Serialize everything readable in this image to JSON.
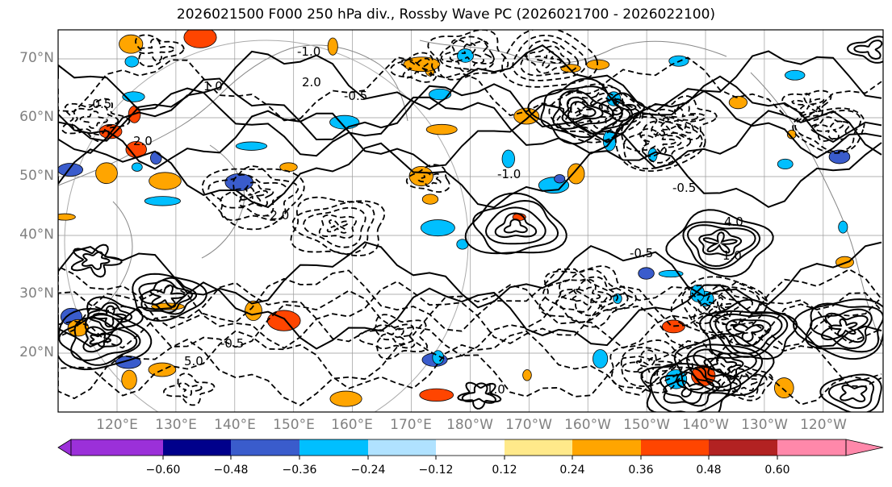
{
  "title": "2026021500 F000 250 hPa div., Rossby Wave PC (2026021700 - 2026022100)",
  "lat_labels": [
    "70°N",
    "60°N",
    "50°N",
    "40°N",
    "30°N",
    "20°N"
  ],
  "lon_labels": [
    "120°E",
    "130°E",
    "140°E",
    "150°E",
    "160°E",
    "170°E",
    "180°W",
    "170°W",
    "160°W",
    "150°W",
    "140°W",
    "130°W",
    "120°W"
  ],
  "colorbar": {
    "ticks": [
      "−0.60",
      "−0.48",
      "−0.36",
      "−0.24",
      "−0.12",
      "0.12",
      "0.24",
      "0.36",
      "0.48",
      "0.60"
    ],
    "colors": [
      "#9b30d9",
      "#00008b",
      "#3a5ccc",
      "#00bfff",
      "#b0e2ff",
      "#ffffff",
      "#ffe98a",
      "#ffa500",
      "#ff4500",
      "#b22222",
      "#ff88aa",
      "#ff88aa"
    ]
  },
  "contour_labels": [
    "-0.5",
    "-1.0",
    "4.0",
    "5.0",
    "-2.0",
    "-0.5",
    "1.0",
    "-0.5",
    "2.0",
    "-0.5",
    "-1.0",
    "-0.5",
    "1.0",
    "2.0",
    "1.0"
  ],
  "shading_colors": {
    "positive_low": "#ffa500",
    "positive_mid": "#ff4500",
    "negative_low": "#00bfff",
    "negative_mid": "#3a5ccc"
  }
}
